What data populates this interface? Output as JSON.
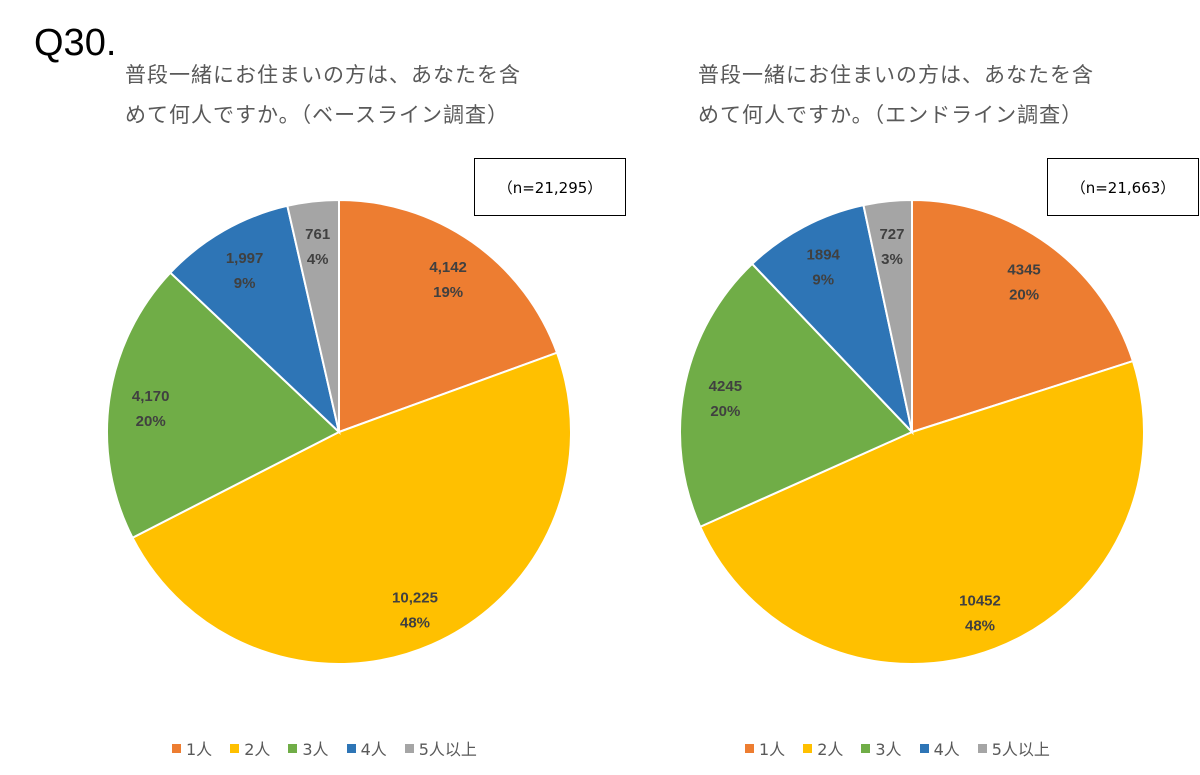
{
  "question_number": "Q30.",
  "chart_data": [
    {
      "type": "pie",
      "title_line1": "普段一緒にお住まいの方は、あなたを含",
      "title_line2": "めて何人ですか。（ベースライン調査）",
      "n_label": "（n=21,295）",
      "categories": [
        "1人",
        "2人",
        "3人",
        "4人",
        "5人以上"
      ],
      "values": [
        4142,
        10225,
        4170,
        1997,
        761
      ],
      "value_labels": [
        "4,142",
        "10,225",
        "4,170",
        "1,997",
        "761"
      ],
      "percent_labels": [
        "19%",
        "48%",
        "20%",
        "9%",
        "4%"
      ],
      "colors": [
        "#ED7D31",
        "#FFC000",
        "#70AD47",
        "#2E75B6",
        "#A5A5A5"
      ],
      "legend_position": "bottom"
    },
    {
      "type": "pie",
      "title_line1": "普段一緒にお住まいの方は、あなたを含",
      "title_line2": "めて何人ですか。（エンドライン調査）",
      "n_label": "（n=21,663）",
      "categories": [
        "1人",
        "2人",
        "3人",
        "4人",
        "5人以上"
      ],
      "values": [
        4345,
        10452,
        4245,
        1894,
        727
      ],
      "value_labels": [
        "4345",
        "10452",
        "4245",
        "1894",
        "727"
      ],
      "percent_labels": [
        "20%",
        "48%",
        "20%",
        "9%",
        "3%"
      ],
      "colors": [
        "#ED7D31",
        "#FFC000",
        "#70AD47",
        "#2E75B6",
        "#A5A5A5"
      ],
      "legend_position": "bottom"
    }
  ]
}
